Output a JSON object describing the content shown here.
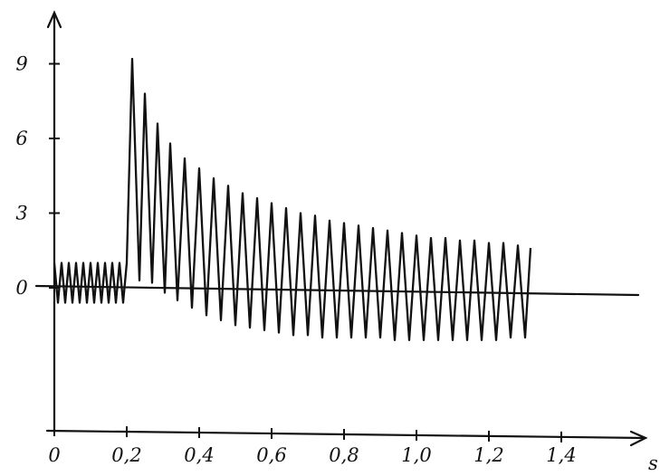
{
  "chart_data": {
    "type": "line",
    "title": "",
    "xlabel": "s",
    "ylabel": "",
    "xlim": [
      0,
      1.6
    ],
    "ylim": [
      -5.5,
      11
    ],
    "x_ticks": [
      "0",
      "0,2",
      "0,4",
      "0,6",
      "0,8",
      "1,0",
      "1,2",
      "1,4"
    ],
    "x_tick_values": [
      0,
      0.2,
      0.4,
      0.6,
      0.8,
      1.0,
      1.2,
      1.4
    ],
    "y_ticks": [
      "0",
      "3",
      "6",
      "9"
    ],
    "y_tick_values": [
      0,
      3,
      6,
      9
    ],
    "series": [
      {
        "x": [
          0.0,
          0.01,
          0.02,
          0.03,
          0.04,
          0.05,
          0.06,
          0.07,
          0.08,
          0.09,
          0.1,
          0.11,
          0.12,
          0.13,
          0.14,
          0.15,
          0.16,
          0.17,
          0.18,
          0.19,
          0.2,
          0.215,
          0.235,
          0.25,
          0.27,
          0.285,
          0.305,
          0.32,
          0.34,
          0.36,
          0.38,
          0.4,
          0.42,
          0.44,
          0.46,
          0.48,
          0.5,
          0.52,
          0.54,
          0.56,
          0.58,
          0.6,
          0.62,
          0.64,
          0.66,
          0.68,
          0.7,
          0.72,
          0.74,
          0.76,
          0.78,
          0.8,
          0.82,
          0.84,
          0.86,
          0.88,
          0.9,
          0.92,
          0.94,
          0.96,
          0.98,
          1.0,
          1.02,
          1.04,
          1.06,
          1.08,
          1.1,
          1.12,
          1.14,
          1.16,
          1.18,
          1.2,
          1.22,
          1.24,
          1.26,
          1.28,
          1.3,
          1.315
        ],
        "y": [
          1.0,
          -0.6,
          1.0,
          -0.6,
          1.0,
          -0.6,
          1.0,
          -0.6,
          1.0,
          -0.6,
          1.0,
          -0.6,
          1.0,
          -0.6,
          1.0,
          -0.6,
          1.0,
          -0.6,
          1.0,
          -0.6,
          1.0,
          9.2,
          0.3,
          7.8,
          0.2,
          6.6,
          -0.2,
          5.8,
          -0.5,
          5.2,
          -0.8,
          4.8,
          -1.1,
          4.4,
          -1.3,
          4.1,
          -1.5,
          3.8,
          -1.6,
          3.6,
          -1.7,
          3.4,
          -1.8,
          3.2,
          -1.9,
          3.0,
          -1.9,
          2.9,
          -2.0,
          2.7,
          -2.0,
          2.6,
          -2.0,
          2.5,
          -2.0,
          2.4,
          -2.0,
          2.3,
          -2.1,
          2.2,
          -2.1,
          2.1,
          -2.1,
          2.0,
          -2.1,
          2.0,
          -2.1,
          1.9,
          -2.1,
          1.9,
          -2.1,
          1.8,
          -2.1,
          1.8,
          -2.0,
          1.7,
          -2.0,
          1.6
        ]
      }
    ],
    "grid": false,
    "legend": "none"
  }
}
